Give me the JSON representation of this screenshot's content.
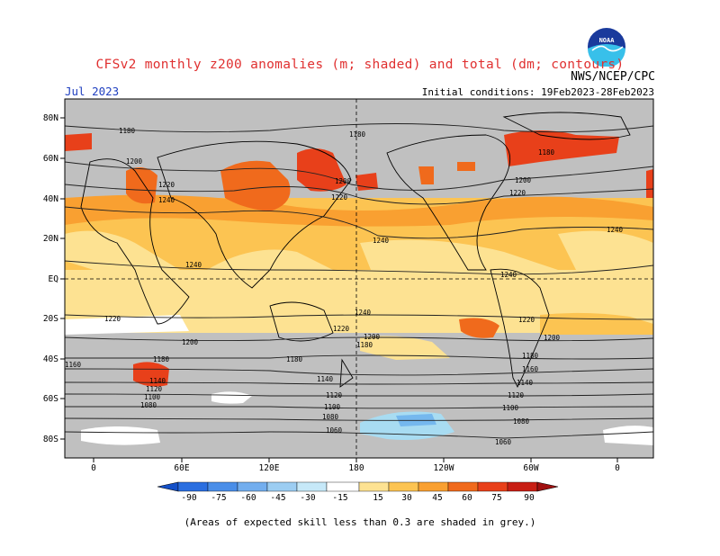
{
  "header": {
    "title": "CFSv2 monthly z200 anomalies (m; shaded) and total (dm; contours)",
    "agency": "NWS/NCEP/CPC",
    "month": "Jul 2023",
    "initial_conditions": "Initial conditions: 19Feb2023-28Feb2023",
    "logo_text": "NOAA"
  },
  "map": {
    "lat_labels": [
      "80N",
      "60N",
      "40N",
      "20N",
      "EQ",
      "20S",
      "40S",
      "60S",
      "80S"
    ],
    "lon_labels": [
      "0",
      "60E",
      "120E",
      "180",
      "120W",
      "60W",
      "0"
    ],
    "contour_labels": [
      "1180",
      "1200",
      "1220",
      "1240",
      "1160",
      "1140",
      "1120",
      "1100",
      "1080",
      "1060"
    ],
    "colors": {
      "grey_low_skill": "#c0c0c0",
      "light_yellow": "#fde292",
      "yellow_orange": "#fcc452",
      "orange": "#f9a031",
      "dark_orange": "#f06a1c",
      "red_orange": "#e8401a",
      "light_blue": "#a8dcf2",
      "mid_blue": "#75b8ee",
      "blue": "#4a9ae6"
    }
  },
  "colorbar": {
    "labels": [
      "-90",
      "-75",
      "-60",
      "-45",
      "-30",
      "-15",
      "15",
      "30",
      "45",
      "60",
      "75",
      "90"
    ],
    "colors": [
      "#1450c8",
      "#2a6ee0",
      "#4a8ee8",
      "#73aeee",
      "#9ccdf2",
      "#c6e8f8",
      "#ffffff",
      "#fde292",
      "#fcc452",
      "#f9a031",
      "#f06a1c",
      "#e8401a",
      "#c81e14",
      "#a01010"
    ]
  },
  "footnote": "(Areas of expected skill less than 0.3 are shaded in grey.)"
}
